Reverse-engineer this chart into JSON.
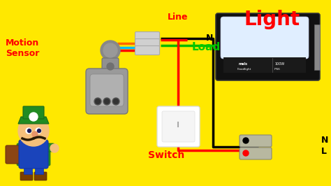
{
  "bg_color": "#FFE800",
  "title_light": "Light",
  "title_motion": "Motion\nSensor",
  "label_line": "Line",
  "label_load": "Load",
  "label_switch": "Switch",
  "label_N_top": "N",
  "label_N_bot": "N",
  "label_L": "L",
  "wire_black": "#000000",
  "wire_red": "#FF0000",
  "wire_green": "#00BB00",
  "wire_blue": "#00BBFF",
  "wire_orange": "#FF6600",
  "col_red": "#FF0000",
  "col_black": "#000000",
  "col_green": "#00CC00",
  "figw": 4.74,
  "figh": 2.66,
  "dpi": 100
}
